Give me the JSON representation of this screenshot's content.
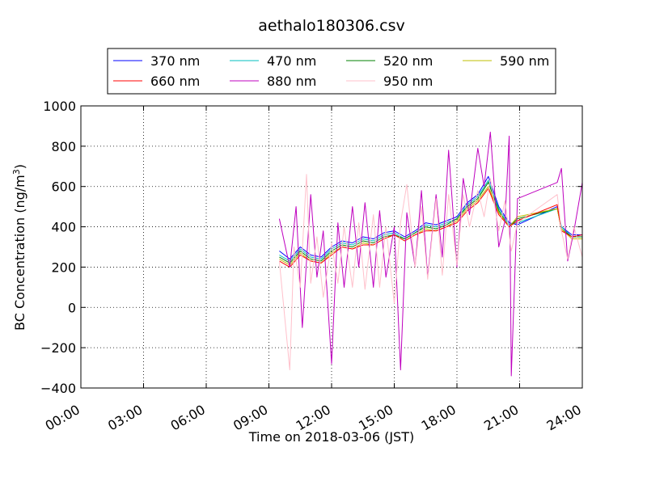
{
  "chart_data": {
    "type": "line",
    "title": "aethalo180306.csv",
    "xlabel": "Time on 2018-03-06 (JST)",
    "ylabel": "BC Concentration (ng/m",
    "ylabel_sup": "3",
    "ylabel_close": ")",
    "xlim": [
      0,
      24
    ],
    "ylim": [
      -400,
      1000
    ],
    "x_ticks": [
      0,
      3,
      6,
      9,
      12,
      15,
      18,
      21,
      24
    ],
    "x_tick_labels": [
      "00:00",
      "03:00",
      "06:00",
      "09:00",
      "12:00",
      "15:00",
      "18:00",
      "21:00",
      "24:00"
    ],
    "y_ticks": [
      -400,
      -200,
      0,
      200,
      400,
      600,
      800,
      1000
    ],
    "y_tick_labels": [
      "−400",
      "−200",
      "0",
      "200",
      "400",
      "600",
      "800",
      "1000"
    ],
    "grid": true,
    "legend_position": "top-center",
    "legend_columns": 4,
    "series": [
      {
        "name": "370 nm",
        "color": "#0000ff",
        "wavelength": 370,
        "x": [
          9.5,
          10,
          10.5,
          11,
          11.5,
          12,
          12.5,
          13,
          13.5,
          14,
          14.5,
          15,
          15.5,
          16,
          16.5,
          17,
          17.5,
          18,
          18.5,
          19,
          19.5,
          20,
          20.5,
          20.9,
          22.8,
          23,
          23.5,
          24
        ],
        "y": [
          280,
          240,
          300,
          260,
          250,
          300,
          330,
          320,
          350,
          340,
          370,
          380,
          350,
          380,
          420,
          410,
          430,
          450,
          520,
          560,
          650,
          500,
          420,
          410,
          500,
          400,
          360,
          360
        ]
      },
      {
        "name": "470 nm",
        "color": "#00bfbf",
        "wavelength": 470,
        "x": [
          9.5,
          10,
          10.5,
          11,
          11.5,
          12,
          12.5,
          13,
          13.5,
          14,
          14.5,
          15,
          15.5,
          16,
          16.5,
          17,
          17.5,
          18,
          18.5,
          19,
          19.5,
          20,
          20.5,
          20.9,
          22.8,
          23,
          23.5,
          24
        ],
        "y": [
          260,
          230,
          290,
          250,
          240,
          290,
          320,
          310,
          340,
          330,
          360,
          370,
          340,
          370,
          410,
          400,
          420,
          440,
          510,
          550,
          630,
          490,
          410,
          420,
          490,
          400,
          350,
          350
        ]
      },
      {
        "name": "520 nm",
        "color": "#008000",
        "wavelength": 520,
        "x": [
          9.5,
          10,
          10.5,
          11,
          11.5,
          12,
          12.5,
          13,
          13.5,
          14,
          14.5,
          15,
          15.5,
          16,
          16.5,
          17,
          17.5,
          18,
          18.5,
          19,
          19.5,
          20,
          20.5,
          20.9,
          22.8,
          23,
          23.5,
          24
        ],
        "y": [
          250,
          220,
          280,
          240,
          230,
          280,
          310,
          300,
          330,
          320,
          350,
          360,
          340,
          370,
          400,
          390,
          410,
          440,
          500,
          540,
          620,
          480,
          400,
          440,
          490,
          390,
          350,
          350
        ]
      },
      {
        "name": "590 nm",
        "color": "#bfbf00",
        "wavelength": 590,
        "x": [
          9.5,
          10,
          10.5,
          11,
          11.5,
          12,
          12.5,
          13,
          13.5,
          14,
          14.5,
          15,
          15.5,
          16,
          16.5,
          17,
          17.5,
          18,
          18.5,
          19,
          19.5,
          20,
          20.5,
          20.9,
          22.8,
          23,
          23.5,
          24
        ],
        "y": [
          240,
          210,
          270,
          230,
          220,
          270,
          300,
          290,
          320,
          310,
          340,
          360,
          330,
          360,
          390,
          380,
          400,
          430,
          490,
          530,
          600,
          470,
          400,
          450,
          490,
          390,
          340,
          340
        ]
      },
      {
        "name": "660 nm",
        "color": "#ff0000",
        "wavelength": 660,
        "x": [
          9.5,
          10,
          10.5,
          11,
          11.5,
          12,
          12.5,
          13,
          13.5,
          14,
          14.5,
          15,
          15.5,
          16,
          16.5,
          17,
          17.5,
          18,
          18.5,
          19,
          19.5,
          20,
          20.5,
          20.9,
          22.8,
          23,
          23.5,
          24
        ],
        "y": [
          230,
          200,
          260,
          230,
          220,
          260,
          300,
          290,
          310,
          310,
          340,
          360,
          330,
          360,
          380,
          380,
          400,
          420,
          480,
          520,
          590,
          460,
          400,
          430,
          510,
          380,
          350,
          360
        ]
      },
      {
        "name": "880 nm",
        "color": "#bf00bf",
        "wavelength": 880,
        "x": [
          9.5,
          10,
          10.3,
          10.6,
          11,
          11.3,
          11.6,
          12,
          12.3,
          12.6,
          13,
          13.3,
          13.6,
          14,
          14.3,
          14.6,
          15,
          15.3,
          15.6,
          16,
          16.3,
          16.6,
          17,
          17.3,
          17.6,
          18,
          18.3,
          18.6,
          19,
          19.3,
          19.6,
          20,
          20.3,
          20.5,
          20.6,
          20.9,
          22.8,
          23,
          23.3,
          23.6,
          24
        ],
        "y": [
          440,
          200,
          500,
          -100,
          560,
          150,
          380,
          -280,
          420,
          100,
          500,
          200,
          520,
          100,
          480,
          150,
          400,
          -310,
          470,
          200,
          580,
          150,
          560,
          250,
          780,
          200,
          640,
          460,
          790,
          600,
          870,
          300,
          430,
          850,
          -340,
          540,
          620,
          690,
          230,
          380,
          620
        ]
      },
      {
        "name": "950 nm",
        "color": "#ffc0cb",
        "wavelength": 950,
        "x": [
          9.5,
          10,
          10.2,
          10.5,
          10.8,
          11,
          11.3,
          11.6,
          12,
          12.3,
          12.6,
          13,
          13.3,
          13.6,
          14,
          14.3,
          14.6,
          15,
          15.3,
          15.6,
          16,
          16.3,
          16.6,
          17,
          17.3,
          17.6,
          18,
          18.3,
          18.6,
          19,
          19.3,
          19.6,
          20,
          20.3,
          20.6,
          20.9,
          22.8,
          23,
          23.3,
          23.6,
          24
        ],
        "y": [
          230,
          -310,
          300,
          100,
          660,
          120,
          350,
          50,
          320,
          120,
          400,
          100,
          420,
          90,
          460,
          100,
          400,
          20,
          420,
          610,
          200,
          500,
          140,
          540,
          160,
          560,
          210,
          560,
          400,
          580,
          450,
          640,
          380,
          530,
          280,
          420,
          560,
          380,
          240,
          400,
          250
        ]
      }
    ]
  }
}
